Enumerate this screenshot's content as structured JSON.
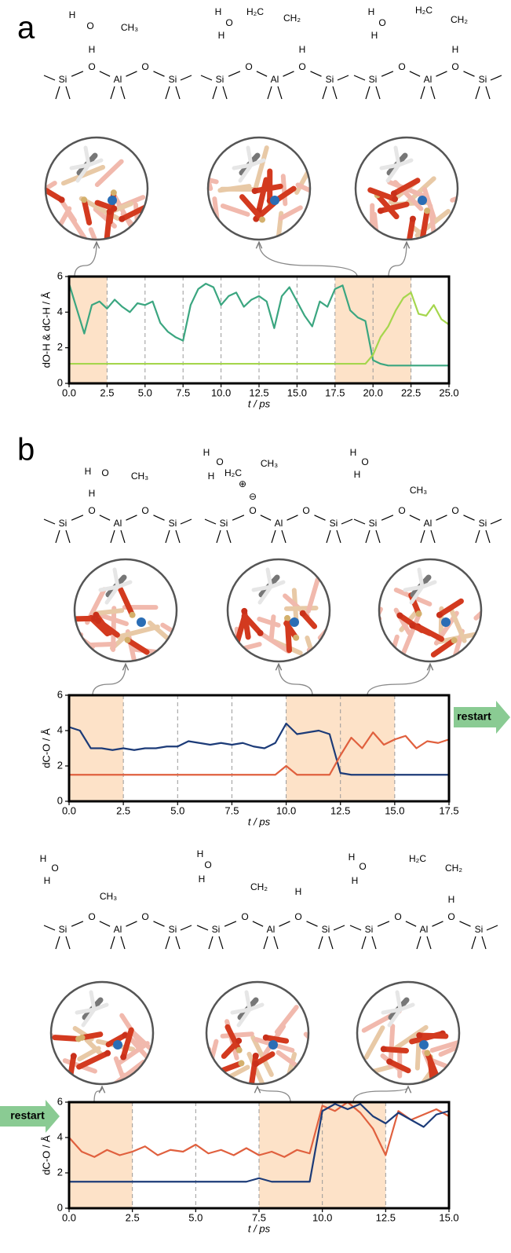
{
  "panel_labels": [
    "a",
    "b"
  ],
  "structures": [
    [
      "Si",
      "O",
      "Al",
      "O",
      "Si",
      "H",
      "H",
      "O",
      "CH₃"
    ],
    [
      "Si",
      "O",
      "Al",
      "O",
      "Si",
      "H",
      "H",
      "O",
      "H",
      "H₂C",
      "CH₂"
    ],
    [
      "Si",
      "O",
      "Al",
      "O",
      "Si",
      "H",
      "H",
      "O",
      "H",
      "H₂C",
      "CH₂"
    ],
    [
      "Si",
      "O",
      "Al",
      "O",
      "Si",
      "H",
      "H",
      "O",
      "CH₃"
    ],
    [
      "Si",
      "O",
      "Al",
      "O",
      "Si",
      "⊖",
      "H",
      "O",
      "H",
      "H₂C",
      "CH₃",
      "⊕"
    ],
    [
      "Si",
      "O",
      "Al",
      "O",
      "Si",
      "H",
      "O",
      "H",
      "CH₃"
    ],
    [
      "Si",
      "O",
      "Al",
      "O",
      "Si",
      "H",
      "O",
      "H",
      "CH₃"
    ],
    [
      "Si",
      "O",
      "Al",
      "O",
      "Si",
      "H",
      "O",
      "H",
      "CH₂",
      "H"
    ],
    [
      "Si",
      "O",
      "Al",
      "O",
      "Si",
      "H",
      "O",
      "H",
      "H",
      "H₂C",
      "CH₂"
    ]
  ],
  "chart_data": [
    {
      "type": "line",
      "ylabel": "dO-H & dC-H / Å",
      "xlabel": "t / ps",
      "xlim": [
        0,
        25
      ],
      "ylim": [
        0,
        6
      ],
      "yticks": [
        0,
        2,
        4,
        6
      ],
      "xticks": [
        {
          "value": 0,
          "label": "0.0"
        },
        {
          "value": 2.5,
          "label": "2.5"
        },
        {
          "value": 5,
          "label": "5.0"
        },
        {
          "value": 7.5,
          "label": "7.5"
        },
        {
          "value": 10,
          "label": "10.0"
        },
        {
          "value": 12.5,
          "label": "12.5"
        },
        {
          "value": 15,
          "label": "15.0"
        },
        {
          "value": 17.5,
          "label": "17.5"
        },
        {
          "value": 20,
          "label": "20.0"
        },
        {
          "value": 22.5,
          "label": "22.5"
        },
        {
          "value": 25,
          "label": "25.0"
        }
      ],
      "grid": true,
      "shaded": [
        [
          0,
          2.5
        ],
        [
          17.5,
          22.5
        ]
      ],
      "x": [
        0,
        0.5,
        1,
        1.5,
        2,
        2.5,
        3,
        3.5,
        4,
        4.5,
        5,
        5.5,
        6,
        6.5,
        7,
        7.5,
        8,
        8.5,
        9,
        9.5,
        10,
        10.5,
        11,
        11.5,
        12,
        12.5,
        13,
        13.5,
        14,
        14.5,
        15,
        15.5,
        16,
        16.5,
        17,
        17.5,
        18,
        18.5,
        19,
        19.5,
        20,
        20.5,
        21,
        21.5,
        22,
        22.5,
        23,
        23.5,
        24,
        24.5,
        25
      ],
      "series": [
        {
          "color": "#3ba680",
          "values": [
            5.6,
            4.2,
            2.8,
            4.4,
            4.6,
            4.2,
            4.7,
            4.3,
            4.0,
            4.5,
            4.4,
            4.6,
            3.4,
            2.9,
            2.6,
            2.4,
            4.4,
            5.3,
            5.6,
            5.4,
            4.4,
            4.9,
            5.1,
            4.3,
            4.7,
            4.9,
            4.6,
            3.1,
            4.9,
            5.4,
            4.6,
            3.8,
            3.2,
            4.6,
            4.3,
            5.3,
            5.5,
            4.1,
            3.7,
            3.5,
            1.3,
            1.1,
            1.0,
            1.0,
            1.0,
            1.0,
            1.0,
            1.0,
            1.0,
            1.0,
            1.0
          ]
        },
        {
          "color": "#a5d64d",
          "values": [
            1.1,
            1.1,
            1.1,
            1.1,
            1.1,
            1.1,
            1.1,
            1.1,
            1.1,
            1.1,
            1.1,
            1.1,
            1.1,
            1.1,
            1.1,
            1.1,
            1.1,
            1.1,
            1.1,
            1.1,
            1.1,
            1.1,
            1.1,
            1.1,
            1.1,
            1.1,
            1.1,
            1.1,
            1.1,
            1.1,
            1.1,
            1.1,
            1.1,
            1.1,
            1.1,
            1.1,
            1.1,
            1.1,
            1.1,
            1.1,
            1.6,
            2.6,
            3.2,
            4.1,
            4.8,
            5.1,
            3.9,
            3.8,
            4.4,
            3.6,
            3.3
          ]
        }
      ]
    },
    {
      "type": "line",
      "ylabel": "dC-O / Å",
      "xlabel": "t / ps",
      "annotation": "restart",
      "xlim": [
        0,
        17.5
      ],
      "ylim": [
        0,
        6
      ],
      "yticks": [
        0,
        2,
        4,
        6
      ],
      "xticks": [
        {
          "value": 0,
          "label": "0.0"
        },
        {
          "value": 2.5,
          "label": "2.5"
        },
        {
          "value": 5,
          "label": "5.0"
        },
        {
          "value": 7.5,
          "label": "7.5"
        },
        {
          "value": 10,
          "label": "10.0"
        },
        {
          "value": 12.5,
          "label": "12.5"
        },
        {
          "value": 15,
          "label": "15.0"
        },
        {
          "value": 17.5,
          "label": "17.5"
        }
      ],
      "grid": true,
      "shaded": [
        [
          0,
          2.5
        ],
        [
          10,
          15
        ]
      ],
      "x": [
        0,
        0.5,
        1,
        1.5,
        2,
        2.5,
        3,
        3.5,
        4,
        4.5,
        5,
        5.5,
        6,
        6.5,
        7,
        7.5,
        8,
        8.5,
        9,
        9.5,
        10,
        10.5,
        11,
        11.5,
        12,
        12.5,
        13,
        13.5,
        14,
        14.5,
        15,
        15.5,
        16,
        16.5,
        17,
        17.5
      ],
      "series": [
        {
          "color": "#1c3b78",
          "values": [
            4.2,
            4.0,
            3.0,
            3.0,
            2.9,
            3.0,
            2.9,
            3.0,
            3.0,
            3.1,
            3.1,
            3.4,
            3.3,
            3.2,
            3.3,
            3.2,
            3.3,
            3.1,
            3.0,
            3.3,
            4.4,
            3.8,
            3.9,
            4.0,
            3.8,
            1.6,
            1.5,
            1.5,
            1.5,
            1.5,
            1.5,
            1.5,
            1.5,
            1.5,
            1.5,
            1.5
          ]
        },
        {
          "color": "#e0603e",
          "values": [
            1.5,
            1.5,
            1.5,
            1.5,
            1.5,
            1.5,
            1.5,
            1.5,
            1.5,
            1.5,
            1.5,
            1.5,
            1.5,
            1.5,
            1.5,
            1.5,
            1.5,
            1.5,
            1.5,
            1.5,
            2.0,
            1.5,
            1.5,
            1.5,
            1.5,
            2.6,
            3.6,
            3.0,
            3.9,
            3.2,
            3.5,
            3.7,
            3.0,
            3.4,
            3.3,
            3.5
          ]
        }
      ]
    },
    {
      "type": "line",
      "ylabel": "dC-O / Å",
      "xlabel": "t / ps",
      "annotation": "restart",
      "xlim": [
        0,
        15
      ],
      "ylim": [
        0,
        6
      ],
      "yticks": [
        0,
        2,
        4,
        6
      ],
      "xticks": [
        {
          "value": 0,
          "label": "0.0"
        },
        {
          "value": 2.5,
          "label": "2.5"
        },
        {
          "value": 5,
          "label": "5.0"
        },
        {
          "value": 7.5,
          "label": "7.5"
        },
        {
          "value": 10,
          "label": "10.0"
        },
        {
          "value": 12.5,
          "label": "12.5"
        },
        {
          "value": 15,
          "label": "15.0"
        }
      ],
      "grid": true,
      "shaded": [
        [
          0,
          2.5
        ],
        [
          7.5,
          12.5
        ]
      ],
      "x": [
        0,
        0.5,
        1,
        1.5,
        2,
        2.5,
        3,
        3.5,
        4,
        4.5,
        5,
        5.5,
        6,
        6.5,
        7,
        7.5,
        8,
        8.5,
        9,
        9.5,
        10,
        10.5,
        11,
        11.5,
        12,
        12.5,
        13,
        13.5,
        14,
        14.5,
        15
      ],
      "series": [
        {
          "color": "#e0603e",
          "values": [
            4.0,
            3.2,
            2.9,
            3.3,
            3.0,
            3.2,
            3.5,
            3.0,
            3.3,
            3.2,
            3.6,
            3.1,
            3.3,
            3.0,
            3.4,
            3.0,
            3.2,
            2.9,
            3.3,
            3.1,
            5.8,
            5.5,
            6.0,
            5.4,
            4.5,
            3.0,
            5.5,
            5.0,
            5.3,
            5.6,
            5.2
          ]
        },
        {
          "color": "#1c3b78",
          "values": [
            1.5,
            1.5,
            1.5,
            1.5,
            1.5,
            1.5,
            1.5,
            1.5,
            1.5,
            1.5,
            1.5,
            1.5,
            1.5,
            1.5,
            1.5,
            1.7,
            1.5,
            1.5,
            1.5,
            1.5,
            5.5,
            5.9,
            5.6,
            5.9,
            5.2,
            4.8,
            5.4,
            5.0,
            4.6,
            5.3,
            5.5
          ]
        }
      ]
    }
  ]
}
